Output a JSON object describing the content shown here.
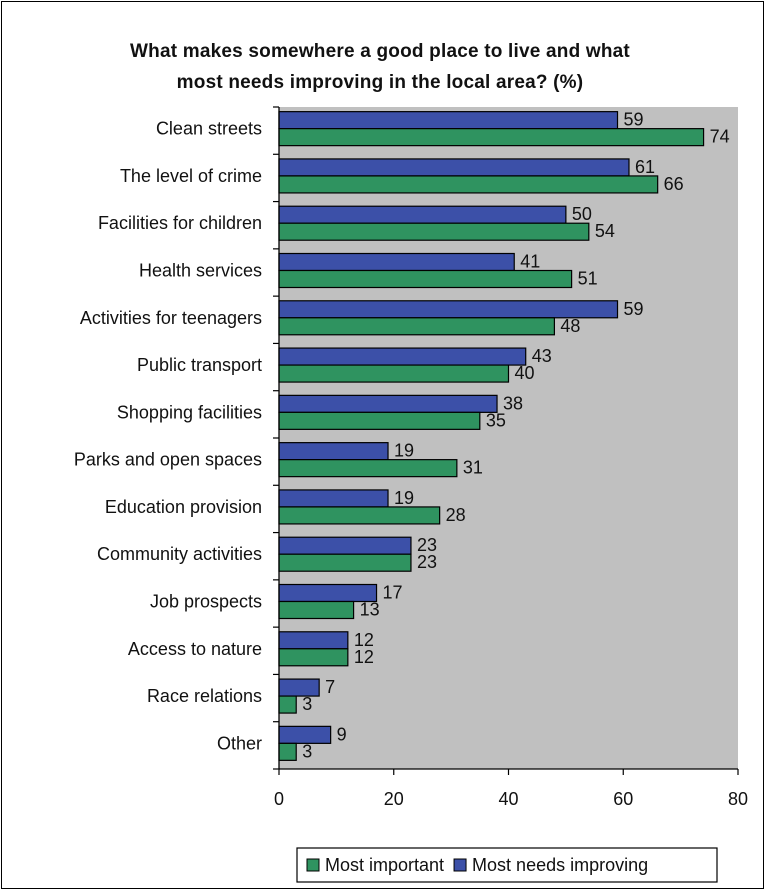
{
  "chart_data": {
    "type": "bar",
    "orientation": "horizontal",
    "title_lines": [
      "What makes somewhere a good place to live and what",
      "most needs improving in the local area? (%)"
    ],
    "categories": [
      "Clean streets",
      "The level of crime",
      "Facilities for children",
      "Health services",
      "Activities for teenagers",
      "Public transport",
      "Shopping facilities",
      "Parks and open spaces",
      "Education provision",
      "Community activities",
      "Job prospects",
      "Access to nature",
      "Race relations",
      "Other"
    ],
    "series": [
      {
        "name": "Most needs improving",
        "color": "#3c50a8",
        "values": [
          59,
          61,
          50,
          41,
          59,
          43,
          38,
          19,
          19,
          23,
          17,
          12,
          7,
          9
        ]
      },
      {
        "name": "Most important",
        "color": "#2f9360",
        "values": [
          74,
          66,
          54,
          51,
          48,
          40,
          35,
          31,
          28,
          23,
          13,
          12,
          3,
          3
        ]
      }
    ],
    "legend_order": [
      "Most important",
      "Most needs improving"
    ],
    "legend_position": "bottom",
    "xlim": [
      0,
      80
    ],
    "xticks": [
      0,
      20,
      40,
      60,
      80
    ],
    "grid": false,
    "plot_background": "#c0c0c0"
  }
}
